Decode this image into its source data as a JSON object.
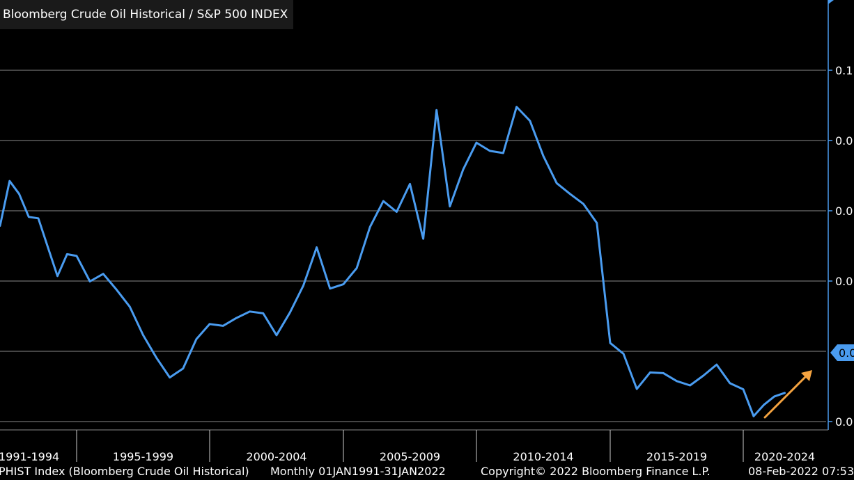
{
  "header": {
    "title": "Bloomberg Crude Oil Historical / S&P 500 INDEX"
  },
  "footer": {
    "series_label": "PHIST Index (Bloomberg Crude Oil Historical)",
    "range_label": "Monthly 01JAN1991-31JAN2022",
    "copyright": "Copyright© 2022 Bloomberg Finance L.P.",
    "timestamp": "08-Feb-2022 07:53"
  },
  "colors": {
    "background": "#000000",
    "line": "#4a9cf0",
    "grid": "#8a8a8a",
    "text": "#ffffff",
    "arrow": "#f4a340",
    "last_value_badge": "#4a9cf0"
  },
  "chart_data": {
    "type": "line",
    "title": "Bloomberg Crude Oil Historical / S&P 500 INDEX",
    "x_categories": [
      "1991-1994",
      "1995-1999",
      "2000-2004",
      "2005-2009",
      "2010-2014",
      "2015-2019",
      "2020-2024"
    ],
    "y_tick_labels": [
      "0.1",
      "0.0",
      "0.0",
      "0.0",
      "0.0",
      "0.0"
    ],
    "last_value_label": "0.0",
    "xlim": [
      1991.0,
      2024.0
    ],
    "ylim": [
      0.002,
      0.1
    ],
    "grid": true,
    "annotation": "upward arrow near latest value",
    "series": [
      {
        "values": [
          [
            1991.0,
            0.0566
          ],
          [
            1991.5,
            0.0691
          ],
          [
            1992.0,
            0.0655
          ],
          [
            1992.5,
            0.0591
          ],
          [
            1993.0,
            0.0587
          ],
          [
            1993.5,
            0.0506
          ],
          [
            1994.0,
            0.0426
          ],
          [
            1994.5,
            0.0487
          ],
          [
            1995.0,
            0.0482
          ],
          [
            1995.5,
            0.0411
          ],
          [
            1996.0,
            0.0432
          ],
          [
            1996.5,
            0.0388
          ],
          [
            1997.0,
            0.034
          ],
          [
            1997.5,
            0.0261
          ],
          [
            1998.0,
            0.0198
          ],
          [
            1998.5,
            0.0143
          ],
          [
            1999.0,
            0.0168
          ],
          [
            1999.5,
            0.025
          ],
          [
            2000.0,
            0.0292
          ],
          [
            2000.5,
            0.0287
          ],
          [
            2001.0,
            0.0309
          ],
          [
            2001.5,
            0.0327
          ],
          [
            2002.0,
            0.0322
          ],
          [
            2002.5,
            0.0261
          ],
          [
            2003.0,
            0.0324
          ],
          [
            2003.5,
            0.0399
          ],
          [
            2004.0,
            0.0506
          ],
          [
            2004.5,
            0.0391
          ],
          [
            2005.0,
            0.0403
          ],
          [
            2005.5,
            0.0448
          ],
          [
            2006.0,
            0.0563
          ],
          [
            2006.5,
            0.0635
          ],
          [
            2007.0,
            0.0605
          ],
          [
            2007.5,
            0.0683
          ],
          [
            2008.0,
            0.053
          ],
          [
            2008.5,
            0.0889
          ],
          [
            2009.0,
            0.062
          ],
          [
            2009.5,
            0.0723
          ],
          [
            2010.0,
            0.0798
          ],
          [
            2010.5,
            0.0775
          ],
          [
            2011.0,
            0.0769
          ],
          [
            2011.5,
            0.0898
          ],
          [
            2012.0,
            0.0859
          ],
          [
            2012.5,
            0.0761
          ],
          [
            2013.0,
            0.0685
          ],
          [
            2013.5,
            0.0655
          ],
          [
            2014.0,
            0.0627
          ],
          [
            2014.5,
            0.0574
          ],
          [
            2015.0,
            0.0239
          ],
          [
            2015.5,
            0.0209
          ],
          [
            2016.0,
            0.0111
          ],
          [
            2016.5,
            0.0157
          ],
          [
            2017.0,
            0.0155
          ],
          [
            2017.5,
            0.0133
          ],
          [
            2018.0,
            0.0121
          ],
          [
            2018.5,
            0.0148
          ],
          [
            2019.0,
            0.0179
          ],
          [
            2019.5,
            0.0127
          ],
          [
            2020.0,
            0.011
          ],
          [
            2020.5,
            0.0035
          ],
          [
            2021.0,
            0.0067
          ],
          [
            2021.5,
            0.009
          ],
          [
            2022.0,
            0.01
          ]
        ]
      }
    ]
  }
}
